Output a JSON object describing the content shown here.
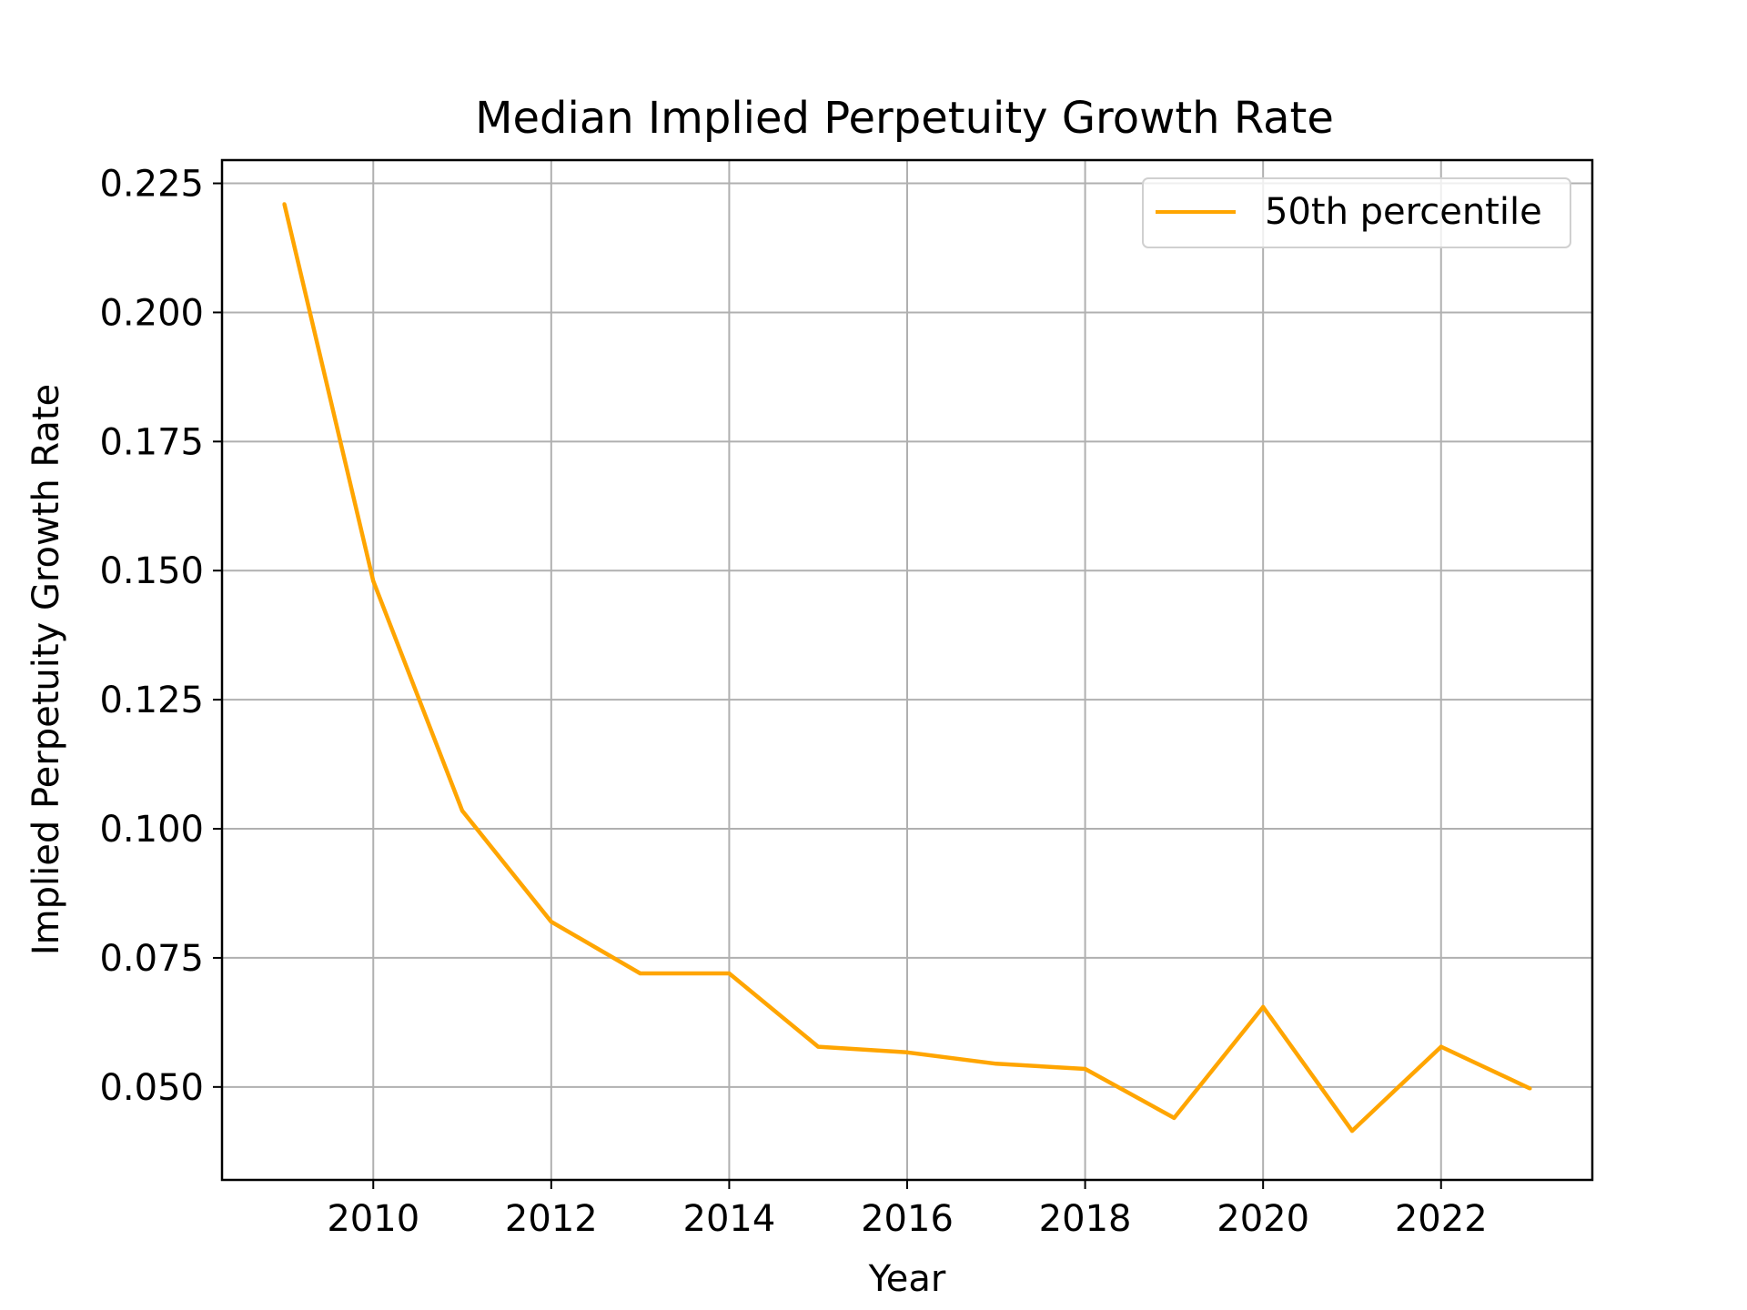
{
  "chart_data": {
    "type": "line",
    "title": "Median Implied Perpetuity Growth Rate",
    "xlabel": "Year",
    "ylabel": "Implied Perpetuity Growth Rate",
    "x": [
      2009,
      2010,
      2011,
      2012,
      2013,
      2014,
      2015,
      2016,
      2017,
      2018,
      2019,
      2020,
      2021,
      2022,
      2023
    ],
    "series": [
      {
        "name": "50th percentile",
        "color": "#FFA500",
        "values": [
          0.221,
          0.148,
          0.1035,
          0.082,
          0.072,
          0.072,
          0.0578,
          0.0567,
          0.0545,
          0.0535,
          0.044,
          0.0655,
          0.0415,
          0.0578,
          0.0497
        ]
      }
    ],
    "xlim": [
      2008.3,
      2023.7
    ],
    "ylim": [
      0.032,
      0.2295
    ],
    "xticks": [
      2010,
      2012,
      2014,
      2016,
      2018,
      2020,
      2022
    ],
    "xtick_labels": [
      "2010",
      "2012",
      "2014",
      "2016",
      "2018",
      "2020",
      "2022"
    ],
    "yticks": [
      0.05,
      0.075,
      0.1,
      0.125,
      0.15,
      0.175,
      0.2,
      0.225
    ],
    "ytick_labels": [
      "0.050",
      "0.075",
      "0.100",
      "0.125",
      "0.150",
      "0.175",
      "0.200",
      "0.225"
    ],
    "grid": true,
    "legend_position": "top-right",
    "grid_color": "#B0B0B0",
    "axis_color": "#000000"
  }
}
